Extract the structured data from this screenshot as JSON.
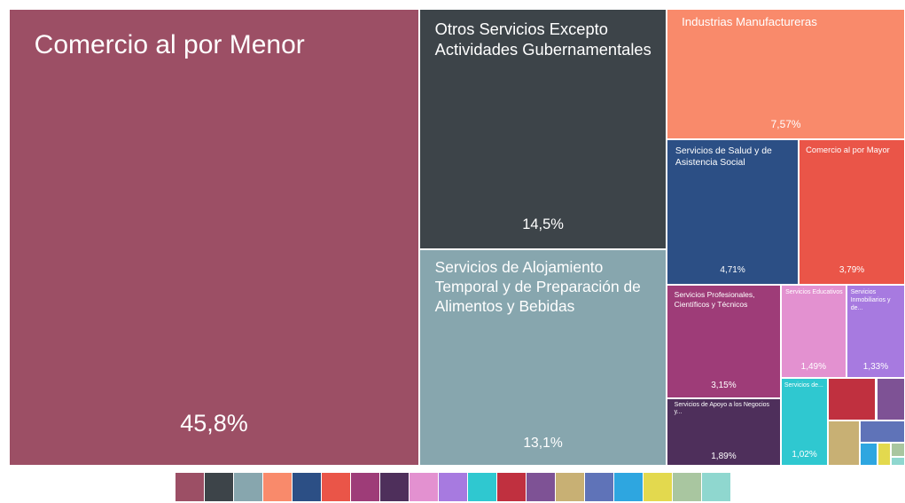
{
  "chart_data": {
    "type": "treemap",
    "categories": [
      "Comercio al por Menor",
      "Otros Servicios Excepto Actividades Gubernamentales",
      "Servicios de Alojamiento Temporal y de Preparación de Alimentos y Bebidas",
      "Industrias Manufactureras",
      "Servicios de Salud y de Asistencia Social",
      "Comercio al por Mayor",
      "Servicios Profesionales, Científicos y Técnicos",
      "Servicios de Apoyo a los Negocios y...",
      "Servicios Educativos",
      "Servicios Inmobiliarios y de...",
      "Servicios de...",
      null,
      null,
      null,
      null,
      null,
      null,
      null,
      null
    ],
    "values": [
      45.8,
      14.5,
      13.1,
      7.57,
      4.71,
      3.79,
      3.15,
      1.89,
      1.49,
      1.33,
      1.02,
      0.5,
      0.3,
      0.35,
      0.25,
      0.1,
      0.07,
      0.05,
      0.03
    ],
    "value_labels": [
      "45,8%",
      "14,5%",
      "13,1%",
      "7,57%",
      "4,71%",
      "3,79%",
      "3,15%",
      "1,89%",
      "1,49%",
      "1,33%",
      "1,02%",
      null,
      null,
      null,
      null,
      null,
      null,
      null,
      null
    ],
    "colors": [
      "#9c4f65",
      "#3d4449",
      "#87a6ae",
      "#f98a6b",
      "#2c4f85",
      "#ea5548",
      "#9e3c78",
      "#4e2f5b",
      "#e391d0",
      "#a77ae0",
      "#2fc8d0",
      "#c0303f",
      "#7e5295",
      "#c8b074",
      "#5f73b8",
      "#2ea6e0",
      "#e3d94e",
      "#a9c6a0",
      "#8fd7cf"
    ],
    "legend": "bottom"
  }
}
